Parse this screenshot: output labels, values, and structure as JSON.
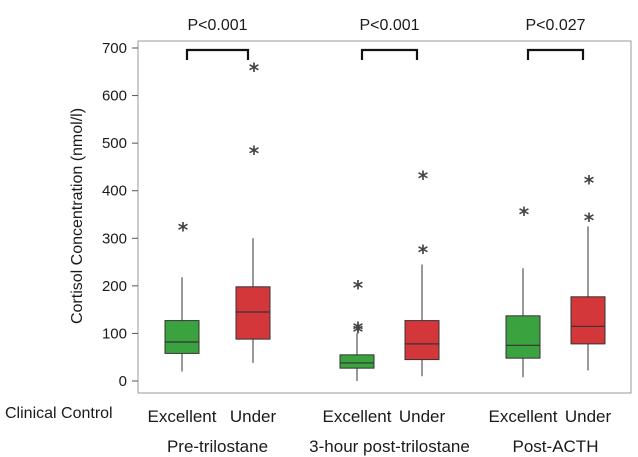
{
  "chart_data": {
    "type": "box",
    "ylabel": "Cortisol Concentration (nmol/l)",
    "ylim": [
      -20,
      720
    ],
    "yticks": [
      0,
      100,
      200,
      300,
      400,
      500,
      600,
      700
    ],
    "row_label": "Clinical Control",
    "series_colors": {
      "Excellent": "#3aa33f",
      "Under": "#d4373a"
    },
    "groups": [
      {
        "name": "Pre-trilostane",
        "pvalue": "P<0.001",
        "boxes": [
          {
            "label": "Excellent",
            "min": 20,
            "q1": 58,
            "median": 82,
            "q3": 127,
            "max": 218,
            "outliers": [
              320
            ]
          },
          {
            "label": "Under",
            "min": 38,
            "q1": 88,
            "median": 145,
            "q3": 198,
            "max": 300,
            "outliers": [
              480,
              655
            ]
          }
        ]
      },
      {
        "name": "3-hour post-trilostane",
        "pvalue": "P<0.001",
        "boxes": [
          {
            "label": "Excellent",
            "min": 0,
            "q1": 27,
            "median": 38,
            "q3": 55,
            "max": 100,
            "outliers": [
              105,
              110,
              198
            ]
          },
          {
            "label": "Under",
            "min": 10,
            "q1": 45,
            "median": 78,
            "q3": 127,
            "max": 245,
            "outliers": [
              272,
              428
            ]
          }
        ]
      },
      {
        "name": "Post-ACTH",
        "pvalue": "P<0.027",
        "boxes": [
          {
            "label": "Excellent",
            "min": 8,
            "q1": 48,
            "median": 75,
            "q3": 137,
            "max": 237,
            "outliers": [
              352
            ]
          },
          {
            "label": "Under",
            "min": 22,
            "q1": 78,
            "median": 115,
            "q3": 177,
            "max": 325,
            "outliers": [
              340,
              418
            ]
          }
        ]
      }
    ]
  }
}
